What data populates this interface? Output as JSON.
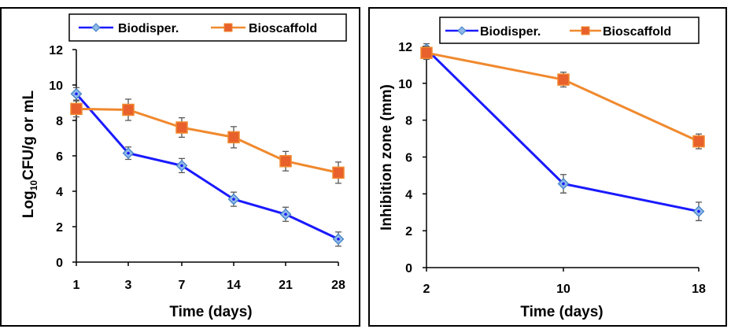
{
  "colors": {
    "biodisper": "#1a1aff",
    "biodisper_marker": "#8fb8e6",
    "biodisper_marker_edge": "#3d7fc6",
    "bioscaffold": "#f0892e",
    "bioscaffold_marker": "#e8602c",
    "errorbar": "#555555"
  },
  "chart_data": [
    {
      "type": "line",
      "title": "",
      "xlabel": "Time (days)",
      "ylabel_parts": {
        "pre": "Log",
        "sub": "10",
        "post": "CFU/g or mL"
      },
      "categories": [
        "1",
        "3",
        "7",
        "14",
        "21",
        "28"
      ],
      "ylim": [
        0,
        12
      ],
      "yticks": [
        "0",
        "2",
        "4",
        "6",
        "8",
        "10",
        "12"
      ],
      "legend_position": "top",
      "series": [
        {
          "name": "Biodisper.",
          "values": [
            9.5,
            6.15,
            5.45,
            3.55,
            2.7,
            1.3
          ],
          "errors": [
            0.35,
            0.35,
            0.4,
            0.4,
            0.4,
            0.4
          ]
        },
        {
          "name": "Bioscaffold",
          "values": [
            8.65,
            8.6,
            7.6,
            7.05,
            5.7,
            5.05
          ],
          "errors": [
            0.45,
            0.6,
            0.55,
            0.6,
            0.55,
            0.6
          ]
        }
      ]
    },
    {
      "type": "line",
      "title": "",
      "xlabel": "Time (days)",
      "ylabel": "Inhibition zone (mm)",
      "categories": [
        "2",
        "10",
        "18"
      ],
      "ylim": [
        0,
        12
      ],
      "yticks": [
        "0",
        "2",
        "4",
        "6",
        "8",
        "10",
        "12"
      ],
      "legend_position": "top",
      "series": [
        {
          "name": "Biodisper.",
          "values": [
            11.85,
            4.55,
            3.05
          ],
          "errors": [
            0.3,
            0.5,
            0.5
          ]
        },
        {
          "name": "Bioscaffold",
          "values": [
            11.65,
            10.2,
            6.85
          ],
          "errors": [
            0.35,
            0.4,
            0.4
          ]
        }
      ]
    }
  ]
}
